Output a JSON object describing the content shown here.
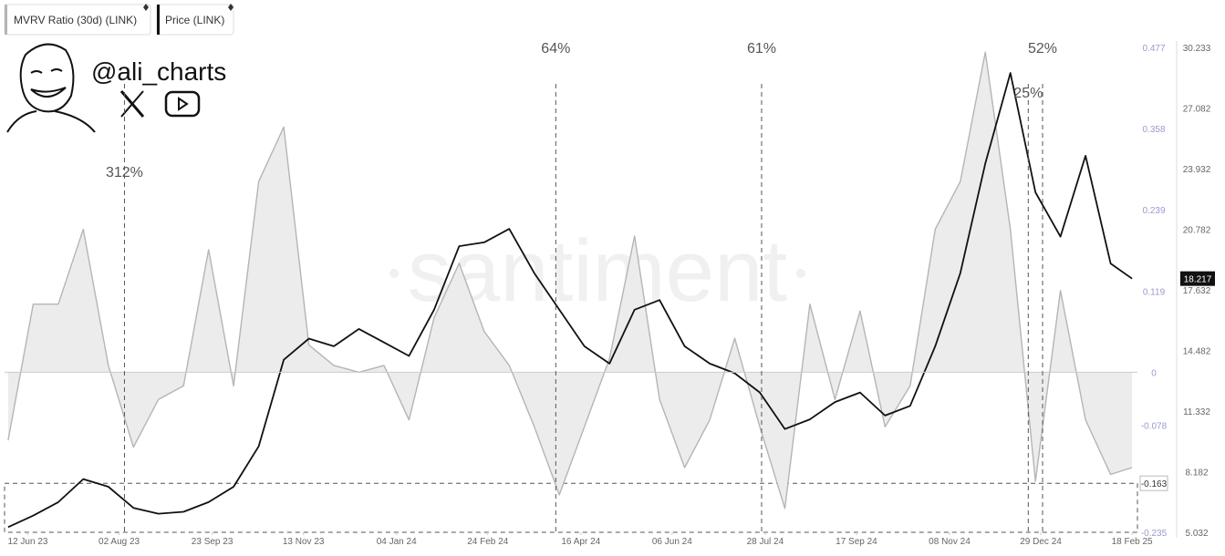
{
  "chart_data": {
    "type": "line",
    "brand": "@ali_charts",
    "watermark": "santiment",
    "x": [
      "2023-06-01",
      "2023-06-15",
      "2023-06-29",
      "2023-07-13",
      "2023-07-27",
      "2023-08-10",
      "2023-08-24",
      "2023-09-07",
      "2023-09-21",
      "2023-10-05",
      "2023-10-19",
      "2023-11-02",
      "2023-11-16",
      "2023-11-30",
      "2023-12-14",
      "2023-12-28",
      "2024-01-11",
      "2024-01-25",
      "2024-02-08",
      "2024-02-22",
      "2024-03-07",
      "2024-03-21",
      "2024-04-04",
      "2024-04-18",
      "2024-05-02",
      "2024-05-16",
      "2024-05-30",
      "2024-06-13",
      "2024-06-27",
      "2024-07-11",
      "2024-07-25",
      "2024-08-08",
      "2024-08-22",
      "2024-09-05",
      "2024-09-19",
      "2024-10-03",
      "2024-10-17",
      "2024-10-31",
      "2024-11-14",
      "2024-11-28",
      "2024-12-12",
      "2024-12-26",
      "2025-01-09",
      "2025-01-23",
      "2025-02-06",
      "2025-02-18"
    ],
    "xlim": [
      "2023-05-30",
      "2025-02-21"
    ],
    "xticks": [
      {
        "value": "2023-06-12",
        "label": "12 Jun 23"
      },
      {
        "value": "2023-08-02",
        "label": "02 Aug 23"
      },
      {
        "value": "2023-09-23",
        "label": "23 Sep 23"
      },
      {
        "value": "2023-11-13",
        "label": "13 Nov 23"
      },
      {
        "value": "2024-01-04",
        "label": "04 Jan 24"
      },
      {
        "value": "2024-02-24",
        "label": "24 Feb 24"
      },
      {
        "value": "2024-04-16",
        "label": "16 Apr 24"
      },
      {
        "value": "2024-06-06",
        "label": "06 Jun 24"
      },
      {
        "value": "2024-07-28",
        "label": "28 Jul 24"
      },
      {
        "value": "2024-09-17",
        "label": "17 Sep 24"
      },
      {
        "value": "2024-11-08",
        "label": "08 Nov 24"
      },
      {
        "value": "2024-12-29",
        "label": "29 Dec 24"
      },
      {
        "value": "2025-02-18",
        "label": "18 Feb 25"
      }
    ],
    "ylim": [
      -0.235,
      0.477
    ],
    "yticks": [
      -0.235,
      -0.078,
      0,
      0.119,
      0.239,
      0.358,
      0.477
    ],
    "y2lim": [
      5.032,
      30.233
    ],
    "y2ticks": [
      5.032,
      8.182,
      11.332,
      14.482,
      17.632,
      20.782,
      23.932,
      27.082,
      30.233
    ],
    "reference_line": -0.163,
    "series": [
      {
        "name": "MVRV Ratio (30d) (LINK)",
        "color": "#b5b5b5",
        "fill": "#ececec",
        "values": [
          -0.1,
          0.1,
          0.1,
          0.21,
          0.01,
          -0.11,
          -0.04,
          -0.02,
          0.18,
          -0.02,
          0.28,
          0.36,
          0.04,
          0.01,
          0.0,
          0.01,
          -0.07,
          0.08,
          0.16,
          0.06,
          0.01,
          -0.08,
          -0.18,
          -0.08,
          0.02,
          0.2,
          -0.04,
          -0.14,
          -0.07,
          0.05,
          -0.08,
          -0.2,
          0.1,
          -0.04,
          0.09,
          -0.08,
          -0.02,
          0.21,
          0.28,
          0.47,
          0.21,
          -0.16,
          0.12,
          -0.07,
          -0.15,
          -0.14
        ]
      },
      {
        "name": "Price (LINK)",
        "color": "#111111",
        "axis": "y2",
        "values": [
          5.3,
          5.9,
          6.6,
          7.8,
          7.4,
          6.3,
          6.0,
          6.1,
          6.6,
          7.4,
          9.5,
          14.0,
          15.1,
          14.7,
          15.6,
          14.9,
          14.2,
          16.6,
          19.9,
          20.1,
          20.8,
          18.5,
          16.6,
          14.7,
          13.8,
          16.6,
          17.1,
          14.7,
          13.8,
          13.3,
          12.3,
          10.4,
          10.9,
          11.8,
          12.3,
          11.1,
          11.6,
          14.7,
          18.5,
          24.2,
          28.9,
          22.7,
          20.4,
          24.6,
          19.0,
          18.217
        ]
      }
    ],
    "annotations": [
      {
        "x": "2023-08-05",
        "label": "312%"
      },
      {
        "x": "2024-04-02",
        "label": "64%"
      },
      {
        "x": "2024-07-26",
        "label": "61%"
      },
      {
        "x": "2024-12-22",
        "label": "25%"
      },
      {
        "x": "2024-12-30",
        "label": "52%"
      }
    ]
  }
}
